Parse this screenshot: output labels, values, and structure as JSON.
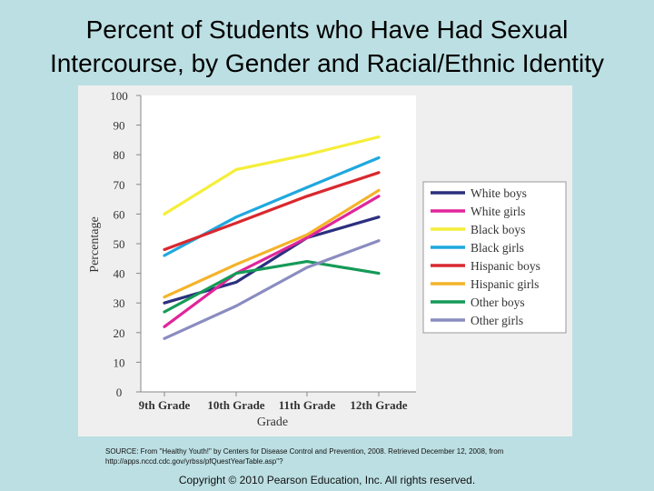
{
  "slide": {
    "title_line1": "Percent of Students who Have Had Sexual",
    "title_line2": "Intercourse, by Gender and Racial/Ethnic Identity",
    "source_line1": "SOURCE: From \"Healthy Youth!\" by Centers for Disease Control and Prevention, 2008. Retrieved December 12, 2008, from",
    "source_line2": "http://apps.nccd.cdc.gov/yrbss/pfQuestYearTable.asp\"?",
    "copyright": "Copyright © 2010 Pearson Education, Inc. All rights reserved."
  },
  "chart_data": {
    "type": "line",
    "title": "",
    "xlabel": "Grade",
    "ylabel": "Percentage",
    "categories": [
      "9th Grade",
      "10th Grade",
      "11th Grade",
      "12th Grade"
    ],
    "ylim": [
      0,
      100
    ],
    "yticks": [
      0,
      10,
      20,
      30,
      40,
      50,
      60,
      70,
      80,
      90,
      100
    ],
    "grid": false,
    "legend_position": "right",
    "series": [
      {
        "name": "White boys",
        "color": "#2b2f7e",
        "values": [
          30,
          37,
          52,
          59
        ]
      },
      {
        "name": "White girls",
        "color": "#e0259a",
        "values": [
          22,
          40,
          52,
          66
        ]
      },
      {
        "name": "Black boys",
        "color": "#f5ee3a",
        "values": [
          60,
          75,
          80,
          86
        ]
      },
      {
        "name": "Black girls",
        "color": "#1fa8de",
        "values": [
          46,
          59,
          69,
          79
        ]
      },
      {
        "name": "Hispanic boys",
        "color": "#d9282f",
        "values": [
          48,
          57,
          66,
          74
        ]
      },
      {
        "name": "Hispanic girls",
        "color": "#f4b32a",
        "values": [
          32,
          43,
          53,
          68
        ]
      },
      {
        "name": "Other boys",
        "color": "#159a57",
        "values": [
          27,
          40,
          44,
          40
        ]
      },
      {
        "name": "Other girls",
        "color": "#8a8cc0",
        "values": [
          18,
          29,
          42,
          51
        ]
      }
    ]
  }
}
